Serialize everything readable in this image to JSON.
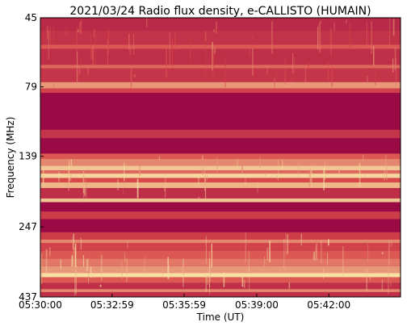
{
  "chart_data": {
    "type": "heatmap",
    "title": "2021/03/24  Radio flux density, e-CALLISTO (HUMAIN)",
    "xlabel": "Time (UT)",
    "ylabel": "Frequency (MHz)",
    "x_ticks": [
      "05:30:00",
      "05:32:59",
      "05:35:59",
      "05:39:00",
      "05:42:00"
    ],
    "y_ticks": [
      "45",
      "79",
      "139",
      "247",
      "437"
    ],
    "y_scale": "log",
    "ylim": [
      45,
      437
    ],
    "xlim": [
      "05:30:00",
      "05:44:59"
    ],
    "colormap": "magma-like (dark red to pale yellow)",
    "colors": {
      "low": "#9a0a45",
      "mid": "#d8484a",
      "high": "#f8e6a6"
    },
    "bands": [
      {
        "freq_range": [
          45,
          50
        ],
        "level": 0.25
      },
      {
        "freq_range": [
          50,
          56
        ],
        "level": 0.32
      },
      {
        "freq_range": [
          56,
          58
        ],
        "level": 0.55
      },
      {
        "freq_range": [
          58,
          66
        ],
        "level": 0.3
      },
      {
        "freq_range": [
          66,
          68
        ],
        "level": 0.6
      },
      {
        "freq_range": [
          68,
          76
        ],
        "level": 0.35
      },
      {
        "freq_range": [
          76,
          80
        ],
        "level": 0.75
      },
      {
        "freq_range": [
          80,
          83
        ],
        "level": 0.45
      },
      {
        "freq_range": [
          83,
          112
        ],
        "level": 0.0
      },
      {
        "freq_range": [
          112,
          120
        ],
        "level": 0.35
      },
      {
        "freq_range": [
          120,
          136
        ],
        "level": 0.0
      },
      {
        "freq_range": [
          136,
          142
        ],
        "level": 0.55
      },
      {
        "freq_range": [
          142,
          150
        ],
        "level": 0.7
      },
      {
        "freq_range": [
          150,
          156
        ],
        "level": 0.9
      },
      {
        "freq_range": [
          156,
          160
        ],
        "level": 0.6
      },
      {
        "freq_range": [
          160,
          166
        ],
        "level": 0.95
      },
      {
        "freq_range": [
          166,
          172
        ],
        "level": 0.5
      },
      {
        "freq_range": [
          172,
          180
        ],
        "level": 0.85
      },
      {
        "freq_range": [
          180,
          196
        ],
        "level": 0.3
      },
      {
        "freq_range": [
          196,
          202
        ],
        "level": 0.9
      },
      {
        "freq_range": [
          202,
          218
        ],
        "level": 0.0
      },
      {
        "freq_range": [
          218,
          232
        ],
        "level": 0.4
      },
      {
        "freq_range": [
          232,
          258
        ],
        "level": 0.0
      },
      {
        "freq_range": [
          258,
          274
        ],
        "level": 0.4
      },
      {
        "freq_range": [
          274,
          282
        ],
        "level": 0.7
      },
      {
        "freq_range": [
          282,
          300
        ],
        "level": 0.45
      },
      {
        "freq_range": [
          300,
          320
        ],
        "level": 0.55
      },
      {
        "freq_range": [
          320,
          340
        ],
        "level": 0.65
      },
      {
        "freq_range": [
          340,
          360
        ],
        "level": 0.75
      },
      {
        "freq_range": [
          360,
          372
        ],
        "level": 0.98
      },
      {
        "freq_range": [
          372,
          390
        ],
        "level": 0.55
      },
      {
        "freq_range": [
          390,
          410
        ],
        "level": 0.3
      },
      {
        "freq_range": [
          410,
          420
        ],
        "level": 0.7
      },
      {
        "freq_range": [
          420,
          437
        ],
        "level": 0.3
      }
    ]
  }
}
